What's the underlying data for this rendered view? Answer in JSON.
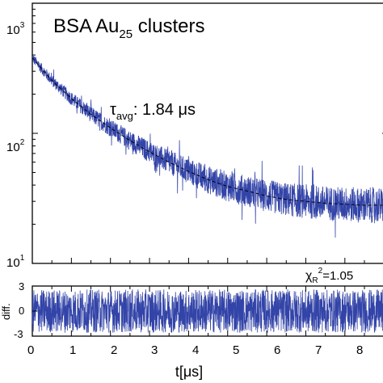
{
  "chart_data": [
    {
      "type": "line",
      "panel": "decay",
      "title": "BSA Au",
      "title_subscript": "25",
      "title_suffix": " clusters",
      "annotation": {
        "symbol": "τ",
        "subscript": "avg",
        "text": ": 1.84 μs"
      },
      "xlim": [
        0,
        9.1
      ],
      "ylim": [
        10,
        1000
      ],
      "yscale": "log",
      "y_tick_labels": [
        {
          "base": "10",
          "exp": "3"
        },
        {
          "base": "10",
          "exp": "2"
        },
        {
          "base": "10",
          "exp": "1"
        }
      ],
      "series": [
        {
          "kind": "measured decay (noisy)",
          "color": "#3344a8",
          "x": [
            0,
            0.5,
            1,
            1.5,
            2,
            2.5,
            3,
            3.5,
            4,
            4.5,
            5,
            5.5,
            6,
            6.5,
            7,
            7.5,
            8,
            8.5,
            9
          ],
          "y": [
            380,
            255,
            185,
            140,
            110,
            88,
            72,
            60,
            51,
            44,
            39,
            36,
            33,
            31,
            30,
            29,
            28.5,
            28,
            28
          ]
        },
        {
          "kind": "fit",
          "color": "#000000",
          "style": "dashed",
          "x": [
            0,
            0.5,
            1,
            1.5,
            2,
            2.5,
            3,
            3.5,
            4,
            4.5,
            5,
            5.5,
            6,
            6.5,
            7,
            7.5,
            8,
            8.5,
            9
          ],
          "y": [
            380,
            255,
            185,
            140,
            110,
            88,
            72,
            60,
            51,
            44,
            39,
            36,
            33,
            31,
            30,
            29,
            28.5,
            28,
            28
          ]
        }
      ]
    },
    {
      "type": "line",
      "panel": "residuals",
      "chi_label": {
        "symbol": "χ",
        "subscript": "R",
        "superscript": "2",
        "value": "=1.05"
      },
      "ylabel": "diff.",
      "xlabel": "t[μs]",
      "xlim": [
        0,
        9.1
      ],
      "ylim": [
        -3,
        3
      ],
      "yticks": [
        "3",
        "0",
        "-3"
      ],
      "xticks": [
        "0",
        "1",
        "2",
        "3",
        "4",
        "5",
        "6",
        "7",
        "8"
      ],
      "xtick_values": [
        0,
        1,
        2,
        3,
        4,
        5,
        6,
        7,
        8
      ],
      "series": [
        {
          "kind": "residuals",
          "color": "#3344a8",
          "amplitude": 2.6
        }
      ]
    }
  ]
}
